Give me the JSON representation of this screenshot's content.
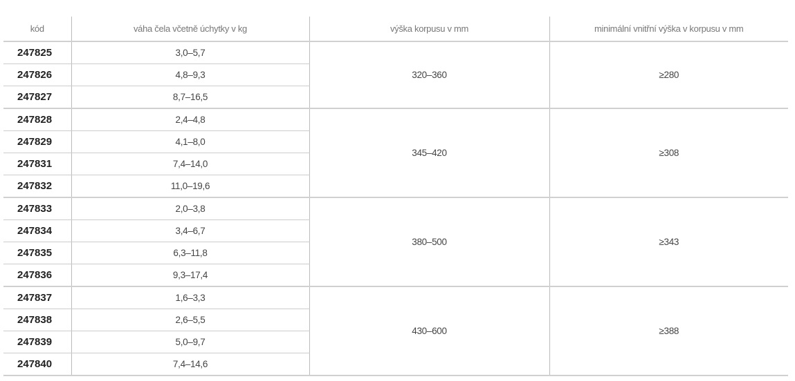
{
  "headers": [
    "kód",
    "váha čela včetně úchytky v kg",
    "výška korpusu v mm",
    "minimální vnitřní výška v korpusu v mm"
  ],
  "groups": [
    {
      "height": "320–360",
      "min_inner": "≥280",
      "rows": [
        {
          "code": "247825",
          "weight": "3,0–5,7"
        },
        {
          "code": "247826",
          "weight": "4,8–9,3"
        },
        {
          "code": "247827",
          "weight": "8,7–16,5"
        }
      ]
    },
    {
      "height": "345–420",
      "min_inner": "≥308",
      "rows": [
        {
          "code": "247828",
          "weight": "2,4–4,8"
        },
        {
          "code": "247829",
          "weight": "4,1–8,0"
        },
        {
          "code": "247831",
          "weight": "7,4–14,0"
        },
        {
          "code": "247832",
          "weight": "11,0–19,6"
        }
      ]
    },
    {
      "height": "380–500",
      "min_inner": "≥343",
      "rows": [
        {
          "code": "247833",
          "weight": "2,0–3,8"
        },
        {
          "code": "247834",
          "weight": "3,4–6,7"
        },
        {
          "code": "247835",
          "weight": "6,3–11,8"
        },
        {
          "code": "247836",
          "weight": "9,3–17,4"
        }
      ]
    },
    {
      "height": "430–600",
      "min_inner": "≥388",
      "rows": [
        {
          "code": "247837",
          "weight": "1,6–3,3"
        },
        {
          "code": "247838",
          "weight": "2,6–5,5"
        },
        {
          "code": "247839",
          "weight": "5,0–9,7"
        },
        {
          "code": "247840",
          "weight": "7,4–14,6"
        }
      ]
    }
  ]
}
